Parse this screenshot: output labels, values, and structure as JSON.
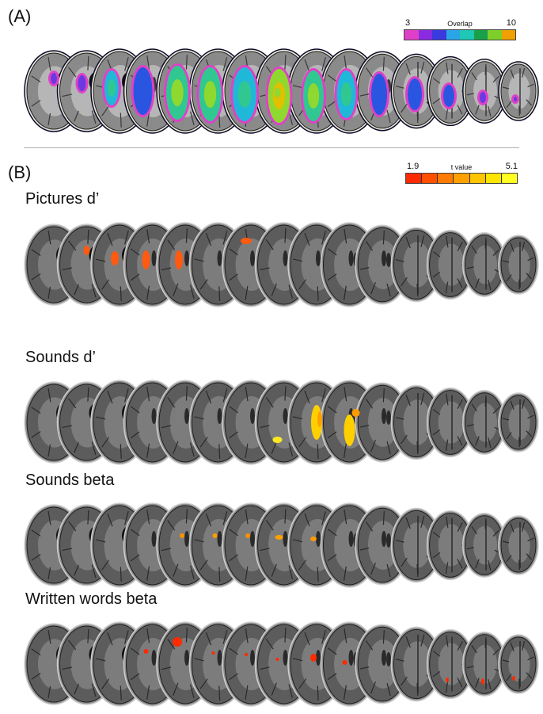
{
  "panel_a": {
    "label": "(A)",
    "colorbar": {
      "min_label": "3",
      "max_label": "10",
      "title": "Overlap",
      "colors": [
        "#e040c8",
        "#8a2be2",
        "#3a3adf",
        "#2aa6e8",
        "#1ec8b4",
        "#1aa04a",
        "#7fcf2a",
        "#f0a000"
      ]
    },
    "overlap_color_levels": [
      "#e040c8",
      "#6a3ae0",
      "#2a55e0",
      "#20b8d8",
      "#30c890",
      "#8fd830",
      "#e0c000"
    ]
  },
  "panel_b": {
    "label": "(B)",
    "colorbar": {
      "min_label": "1.9",
      "max_label": "5.1",
      "title": "t value",
      "colors": [
        "#ff2a00",
        "#ff5000",
        "#ff7a00",
        "#ffa000",
        "#ffc400",
        "#ffe400",
        "#ffff20"
      ]
    },
    "rows": [
      {
        "title": "Pictures  d’"
      },
      {
        "title": "Sounds  d’"
      },
      {
        "title": "Sounds beta"
      },
      {
        "title": "Written words beta"
      }
    ]
  },
  "slice_count": 15
}
